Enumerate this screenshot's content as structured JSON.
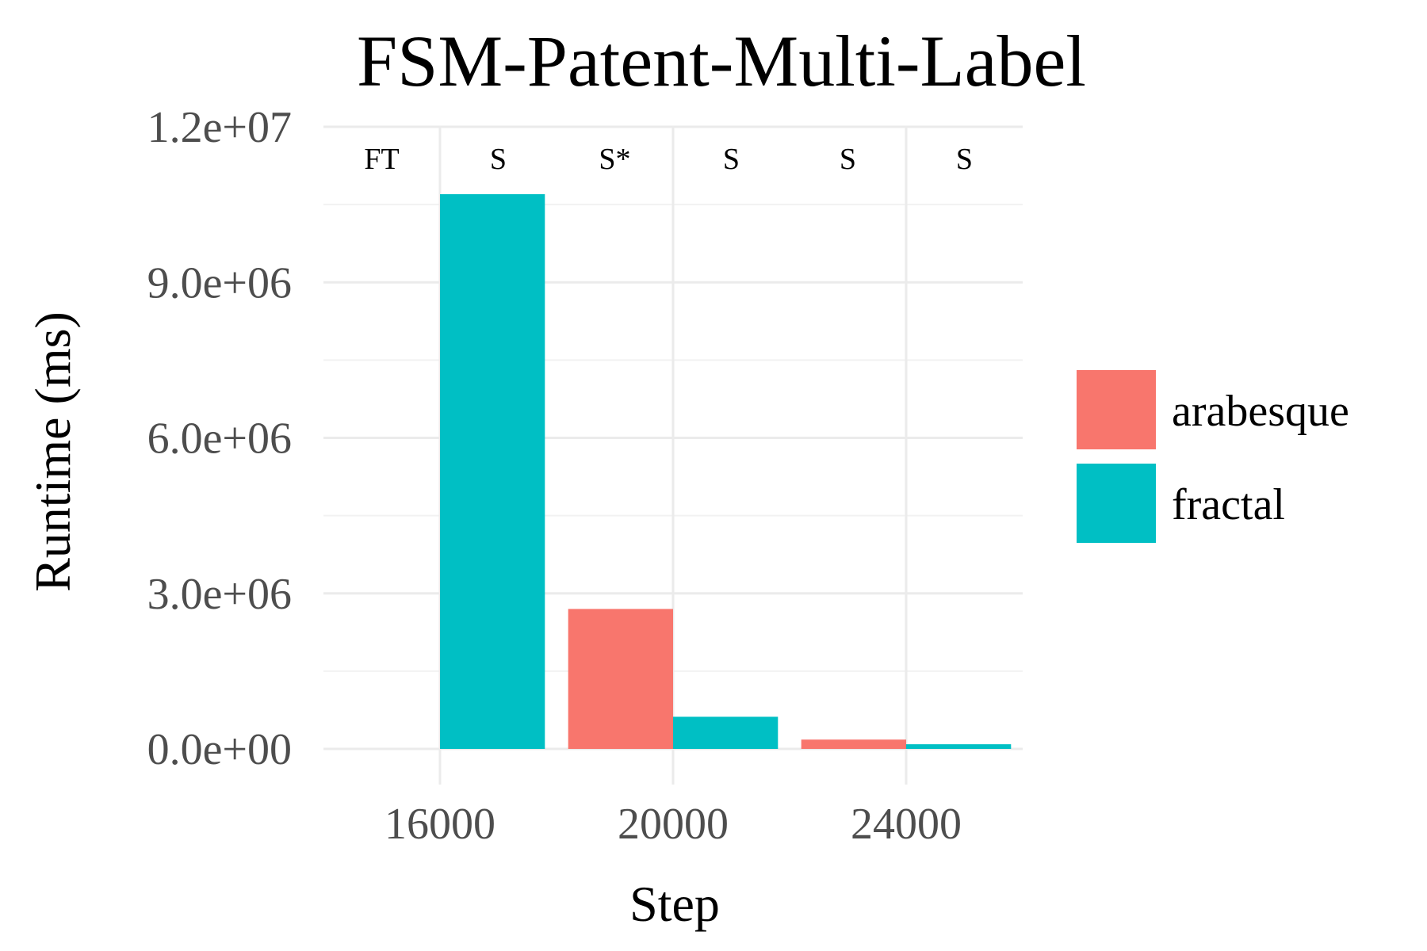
{
  "chart_data": {
    "type": "bar",
    "title": "FSM-Patent-Multi-Label",
    "xlabel": "Step",
    "ylabel": "Runtime (ms)",
    "x_ticks": [
      "16000",
      "20000",
      "24000"
    ],
    "y_ticks": [
      "0.0e+00",
      "3.0e+06",
      "6.0e+06",
      "9.0e+06",
      "1.2e+07"
    ],
    "ylim": [
      0,
      12000000
    ],
    "xlim": [
      14000,
      26000
    ],
    "bar_width": 1800,
    "categories": [
      16000,
      20000,
      24000
    ],
    "series": [
      {
        "name": "arabesque",
        "color": "#F8766D",
        "values": [
          0,
          2700000,
          180000
        ]
      },
      {
        "name": "fractal",
        "color": "#00BFC4",
        "values": [
          10700000,
          620000,
          90000
        ]
      }
    ],
    "annotations": [
      {
        "x": 15000,
        "label": "FT"
      },
      {
        "x": 17000,
        "label": "S"
      },
      {
        "x": 19000,
        "label": "S*"
      },
      {
        "x": 21000,
        "label": "S"
      },
      {
        "x": 23000,
        "label": "S"
      },
      {
        "x": 25000,
        "label": "S"
      }
    ],
    "legend": {
      "position": "right"
    },
    "grid": true
  }
}
